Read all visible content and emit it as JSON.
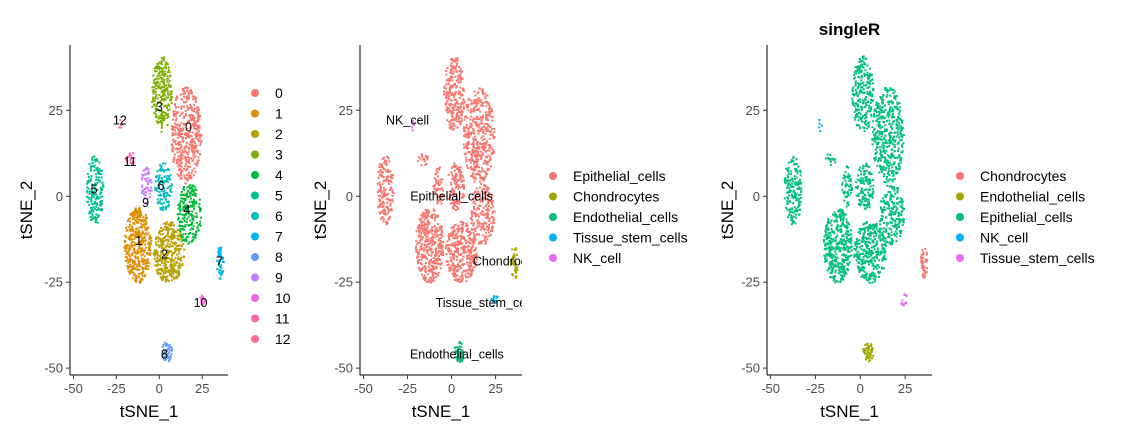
{
  "chart_data": [
    {
      "type": "scatter",
      "title": "",
      "xlabel": "tSNE_1",
      "ylabel": "tSNE_2",
      "xlim": [
        -52,
        40
      ],
      "ylim": [
        -52,
        44
      ],
      "x_ticks": [
        -50,
        -25,
        0,
        25
      ],
      "y_ticks": [
        -50,
        -25,
        0,
        25
      ],
      "x_tick_labels": [
        "-50",
        "-25",
        "0",
        "25"
      ],
      "y_tick_labels": [
        "-50",
        "-25",
        "0",
        "25"
      ],
      "grid": false,
      "legend_position": "right",
      "legend": [
        {
          "label": "0",
          "color": "#F8766D"
        },
        {
          "label": "1",
          "color": "#DE8C00"
        },
        {
          "label": "2",
          "color": "#B79F00"
        },
        {
          "label": "3",
          "color": "#7CAE00"
        },
        {
          "label": "4",
          "color": "#00BA38"
        },
        {
          "label": "5",
          "color": "#00C08B"
        },
        {
          "label": "6",
          "color": "#00BFC4"
        },
        {
          "label": "7",
          "color": "#00B4F0"
        },
        {
          "label": "8",
          "color": "#619CFF"
        },
        {
          "label": "9",
          "color": "#C77CFF"
        },
        {
          "label": "10",
          "color": "#F564E3"
        },
        {
          "label": "11",
          "color": "#FF64B0"
        },
        {
          "label": "12",
          "color": "#FF6C91"
        }
      ],
      "annotations": [
        {
          "text": "0",
          "x": 17,
          "y": 20
        },
        {
          "text": "1",
          "x": -12,
          "y": -13
        },
        {
          "text": "2",
          "x": 3,
          "y": -17
        },
        {
          "text": "3",
          "x": 0,
          "y": 26
        },
        {
          "text": "4",
          "x": 16,
          "y": -4
        },
        {
          "text": "5",
          "x": -38,
          "y": 2
        },
        {
          "text": "6",
          "x": 1,
          "y": 3
        },
        {
          "text": "7",
          "x": 35,
          "y": -19
        },
        {
          "text": "8",
          "x": 3,
          "y": -46
        },
        {
          "text": "9",
          "x": -8,
          "y": -2
        },
        {
          "text": "10",
          "x": 24,
          "y": -31
        },
        {
          "text": "11",
          "x": -17,
          "y": 10
        },
        {
          "text": "12",
          "x": -23,
          "y": 22
        }
      ]
    },
    {
      "type": "scatter",
      "title": "",
      "xlabel": "tSNE_1",
      "ylabel": "tSNE_2",
      "xlim": [
        -52,
        40
      ],
      "ylim": [
        -52,
        44
      ],
      "x_ticks": [
        -50,
        -25,
        0,
        25
      ],
      "y_ticks": [
        -50,
        -25,
        0,
        25
      ],
      "x_tick_labels": [
        "-50",
        "-25",
        "0",
        "25"
      ],
      "y_tick_labels": [
        "-50",
        "-25",
        "0",
        "25"
      ],
      "grid": false,
      "legend_position": "right",
      "legend": [
        {
          "label": "Epithelial_cells",
          "color": "#F8766D"
        },
        {
          "label": "Chondrocytes",
          "color": "#A3A500"
        },
        {
          "label": "Endothelial_cells",
          "color": "#00BF7D"
        },
        {
          "label": "Tissue_stem_cells",
          "color": "#00B0F6"
        },
        {
          "label": "NK_cell",
          "color": "#E76BF3"
        }
      ],
      "annotations": [
        {
          "text": "NK_cell",
          "x": -25,
          "y": 22
        },
        {
          "text": "Epithelial_cells",
          "x": 0,
          "y": 0
        },
        {
          "text": "Chondrocytes",
          "x": 34,
          "y": -19
        },
        {
          "text": "Tissue_stem_cells",
          "x": 20,
          "y": -31
        },
        {
          "text": "Endothelial_cells",
          "x": 3,
          "y": -46
        }
      ]
    },
    {
      "type": "scatter",
      "title": "singleR",
      "xlabel": "tSNE_1",
      "ylabel": "tSNE_2",
      "xlim": [
        -52,
        40
      ],
      "ylim": [
        -52,
        44
      ],
      "x_ticks": [
        -50,
        -25,
        0,
        25
      ],
      "y_ticks": [
        -50,
        -25,
        0,
        25
      ],
      "x_tick_labels": [
        "-50",
        "-25",
        "0",
        "25"
      ],
      "y_tick_labels": [
        "-50",
        "-25",
        "0",
        "25"
      ],
      "grid": false,
      "legend_position": "right",
      "legend": [
        {
          "label": "Chondrocytes",
          "color": "#F8766D"
        },
        {
          "label": "Endothelial_cells",
          "color": "#A3A500"
        },
        {
          "label": "Epithelial_cells",
          "color": "#00BF7D"
        },
        {
          "label": "NK_cell",
          "color": "#00B0F6"
        },
        {
          "label": "Tissue_stem_cells",
          "color": "#E76BF3"
        }
      ],
      "annotations": []
    }
  ]
}
